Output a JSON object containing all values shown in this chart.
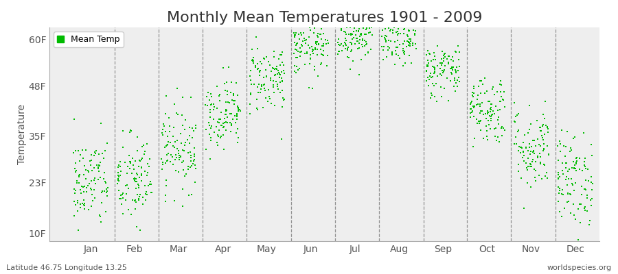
{
  "title": "Monthly Mean Temperatures 1901 - 2009",
  "ylabel": "Temperature",
  "yticks": [
    10,
    23,
    35,
    48,
    60
  ],
  "ytick_labels": [
    "10F",
    "23F",
    "35F",
    "48F",
    "60F"
  ],
  "ylim": [
    8,
    63
  ],
  "months": [
    "Jan",
    "Feb",
    "Mar",
    "Apr",
    "May",
    "Jun",
    "Jul",
    "Aug",
    "Sep",
    "Oct",
    "Nov",
    "Dec"
  ],
  "monthly_means_F": [
    23.0,
    23.5,
    32.0,
    41.0,
    50.0,
    57.5,
    61.0,
    60.0,
    52.0,
    42.0,
    32.0,
    24.0
  ],
  "monthly_std_F": [
    6.0,
    6.0,
    5.5,
    4.5,
    4.5,
    3.5,
    3.5,
    3.5,
    3.5,
    4.5,
    5.5,
    6.0
  ],
  "n_years": 109,
  "start_year": 1901,
  "dot_color": "#00bb00",
  "dot_size": 3,
  "background_color": "#ffffff",
  "plot_bg_color": "#eeeeee",
  "legend_label": "Mean Temp",
  "subtitle_left": "Latitude 46.75 Longitude 13.25",
  "subtitle_right": "worldspecies.org",
  "title_fontsize": 16,
  "axis_label_fontsize": 10,
  "tick_fontsize": 10,
  "subtitle_fontsize": 8,
  "xlim_left": -0.04,
  "xlim_right": 1.0,
  "month_x_positions": [
    0.038,
    0.121,
    0.204,
    0.288,
    0.371,
    0.454,
    0.538,
    0.621,
    0.704,
    0.788,
    0.871,
    0.954
  ],
  "vline_positions": [
    0.083,
    0.167,
    0.25,
    0.333,
    0.417,
    0.5,
    0.583,
    0.667,
    0.75,
    0.833,
    0.917
  ]
}
